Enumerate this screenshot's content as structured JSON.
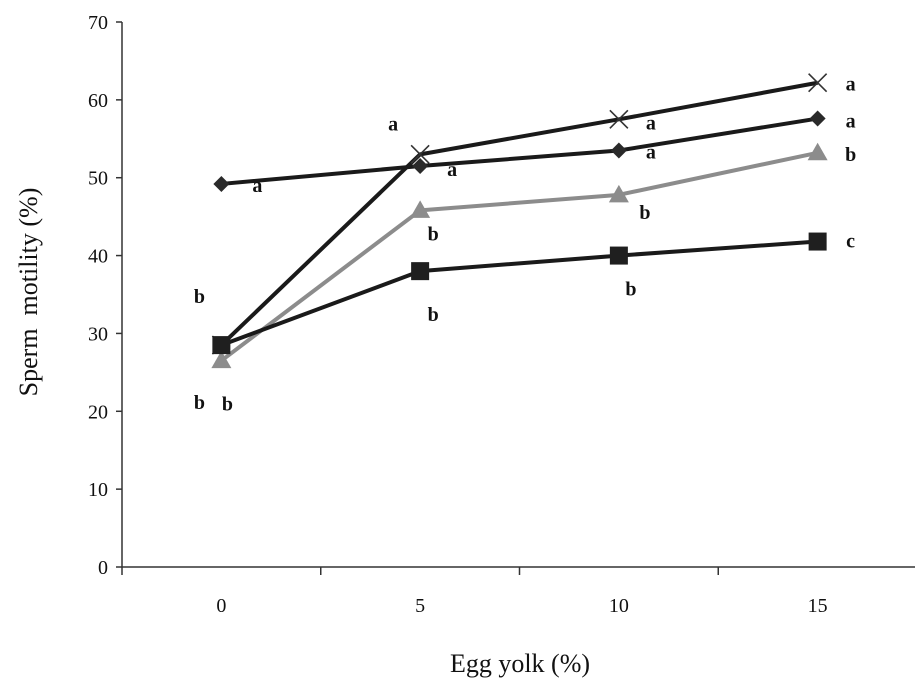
{
  "chart_data": {
    "type": "line",
    "title": "",
    "xlabel": "Egg yolk (%)",
    "ylabel": "Sperm  motility (%)",
    "x": [
      0,
      5,
      10,
      15
    ],
    "xlim": [
      -2.5,
      17.5
    ],
    "ylim": [
      0,
      70
    ],
    "x_ticks": [
      "0",
      "5",
      "10",
      "15"
    ],
    "y_ticks": [
      "0",
      "10",
      "20",
      "30",
      "40",
      "50",
      "60",
      "70"
    ],
    "grid": false,
    "legend": "none",
    "series": [
      {
        "marker": "x",
        "color": "#1a1a1a",
        "values": [
          28.5,
          53,
          57.5,
          62.2
        ],
        "letters": [
          "b",
          "a",
          "a",
          "a"
        ]
      },
      {
        "marker": "diamond",
        "color": "#1a1a1a",
        "values": [
          49.2,
          51.5,
          53.5,
          57.6
        ],
        "letters": [
          "a",
          "a",
          "a",
          "a"
        ]
      },
      {
        "marker": "triangle",
        "color": "#8c8c8c",
        "values": [
          26.5,
          45.8,
          47.8,
          53.2
        ],
        "letters": [
          "b",
          "b",
          "b",
          "b"
        ]
      },
      {
        "marker": "square",
        "color": "#1a1a1a",
        "values": [
          28.5,
          38,
          40,
          41.8
        ],
        "letters": [
          "b",
          "b",
          "b",
          "c"
        ]
      }
    ]
  }
}
